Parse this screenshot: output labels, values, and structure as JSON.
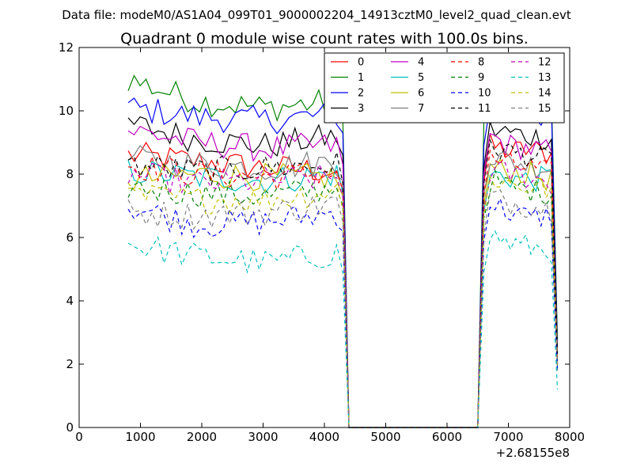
{
  "suptitle": "Data file: modeM0/AS1A04_099T01_9000002204_14913cztM0_level2_quad_clean.evt",
  "chart_data": {
    "type": "line",
    "title": "Quadrant 0 module wise count rates with 100.0s bins.",
    "xlabel": "",
    "ylabel": "",
    "xlim": [
      0,
      8000
    ],
    "ylim": [
      0,
      12
    ],
    "x_offset_label": "+2.68155e8",
    "xticks": [
      "0",
      "1000",
      "2000",
      "3000",
      "4000",
      "5000",
      "6000",
      "7000",
      "8000"
    ],
    "yticks": [
      "0",
      "2",
      "4",
      "6",
      "8",
      "10",
      "12"
    ],
    "legend_position": "top-right",
    "legend_columns": 4,
    "segments": [
      {
        "x_start": 800,
        "x_end": 4200
      },
      {
        "x_start": 6700,
        "x_end": 7700
      }
    ],
    "series": [
      {
        "name": "0",
        "color": "#ff0000",
        "dash": "solid",
        "seg1": [
          8.6,
          8.4,
          8.2,
          8.1
        ],
        "seg2": [
          8.9,
          8.7,
          8.8,
          8.6
        ],
        "drop_end": 2.2
      },
      {
        "name": "1",
        "color": "#008000",
        "dash": "solid",
        "seg1": [
          11.0,
          10.3,
          10.1,
          10.3
        ],
        "seg2": [
          10.8,
          10.6,
          10.7,
          10.5
        ],
        "drop_end": 2.8
      },
      {
        "name": "2",
        "color": "#0000ff",
        "dash": "solid",
        "seg1": [
          10.1,
          9.8,
          9.7,
          9.9
        ],
        "seg2": [
          10.1,
          9.8,
          9.9,
          9.8
        ],
        "drop_end": 2.5
      },
      {
        "name": "3",
        "color": "#000000",
        "dash": "solid",
        "seg1": [
          9.6,
          9.1,
          8.9,
          9.2
        ],
        "seg2": [
          9.4,
          9.3,
          9.2,
          9.1
        ],
        "drop_end": 2.4
      },
      {
        "name": "4",
        "color": "#bf00bf",
        "dash": "solid",
        "seg1": [
          9.4,
          9.0,
          8.8,
          8.9
        ],
        "seg2": [
          9.2,
          8.9,
          8.8,
          8.7
        ],
        "drop_end": 2.1
      },
      {
        "name": "5",
        "color": "#00bfbf",
        "dash": "solid",
        "seg1": [
          8.1,
          7.9,
          7.8,
          8.0
        ],
        "seg2": [
          8.0,
          7.9,
          7.8,
          7.9
        ],
        "drop_end": 2.0
      },
      {
        "name": "6",
        "color": "#bfbf00",
        "dash": "solid",
        "seg1": [
          7.8,
          8.0,
          7.9,
          7.9
        ],
        "seg2": [
          8.2,
          8.1,
          8.0,
          7.8
        ],
        "drop_end": 2.0
      },
      {
        "name": "7",
        "color": "#808080",
        "dash": "solid",
        "seg1": [
          8.5,
          8.3,
          8.2,
          8.4
        ],
        "seg2": [
          8.6,
          8.4,
          8.3,
          8.2
        ],
        "drop_end": 2.3
      },
      {
        "name": "8",
        "color": "#ff0000",
        "dash": "dashed",
        "seg1": [
          8.3,
          8.0,
          7.9,
          8.1
        ],
        "seg2": [
          8.5,
          8.3,
          8.2,
          8.0
        ],
        "drop_end": 2.0
      },
      {
        "name": "9",
        "color": "#008000",
        "dash": "dashed",
        "seg1": [
          7.6,
          7.4,
          7.3,
          7.6
        ],
        "seg2": [
          7.8,
          7.6,
          7.5,
          7.4
        ],
        "drop_end": 1.9
      },
      {
        "name": "10",
        "color": "#0000ff",
        "dash": "dashed",
        "seg1": [
          7.0,
          6.4,
          6.5,
          6.8
        ],
        "seg2": [
          7.1,
          6.8,
          6.6,
          6.7
        ],
        "drop_end": 1.8
      },
      {
        "name": "11",
        "color": "#000000",
        "dash": "dashed",
        "seg1": [
          8.3,
          8.1,
          8.2,
          8.3
        ],
        "seg2": [
          8.9,
          8.7,
          8.6,
          8.4
        ],
        "drop_end": 2.2
      },
      {
        "name": "12",
        "color": "#bf00bf",
        "dash": "dashed",
        "seg1": [
          8.0,
          7.7,
          7.8,
          7.9
        ],
        "seg2": [
          8.1,
          8.0,
          7.9,
          7.7
        ],
        "drop_end": 2.0
      },
      {
        "name": "13",
        "color": "#00bfbf",
        "dash": "dashed",
        "seg1": [
          5.8,
          5.4,
          5.2,
          5.5
        ],
        "seg2": [
          6.1,
          5.8,
          5.7,
          5.6
        ],
        "drop_end": 1.2
      },
      {
        "name": "14",
        "color": "#bfbf00",
        "dash": "dashed",
        "seg1": [
          7.3,
          7.2,
          7.2,
          7.5
        ],
        "seg2": [
          7.9,
          7.7,
          7.6,
          7.5
        ],
        "drop_end": 1.9
      },
      {
        "name": "15",
        "color": "#808080",
        "dash": "dashed",
        "seg1": [
          6.8,
          6.7,
          6.8,
          7.1
        ],
        "seg2": [
          7.3,
          7.1,
          7.0,
          6.9
        ],
        "drop_end": 1.8
      }
    ]
  }
}
